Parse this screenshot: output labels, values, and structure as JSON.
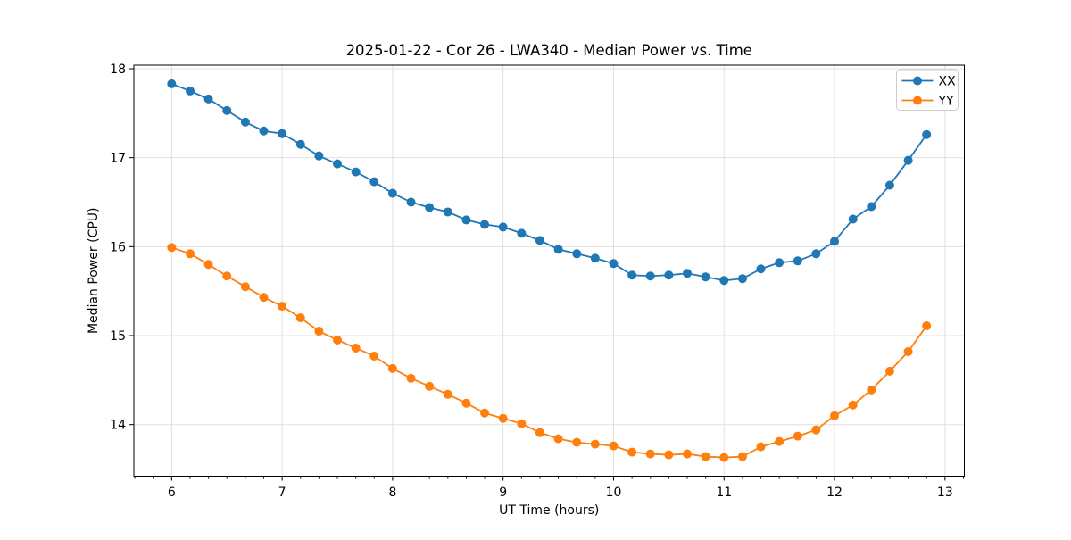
{
  "chart_data": {
    "type": "line",
    "title": "2025-01-22 - Cor 26 - LWA340 - Median Power vs. Time",
    "xlabel": "UT Time (hours)",
    "ylabel": "Median Power (CPU)",
    "xlim": [
      5.658,
      13.175
    ],
    "ylim": [
      13.42,
      18.04
    ],
    "xticks": [
      6,
      7,
      8,
      9,
      10,
      11,
      12,
      13
    ],
    "yticks": [
      14,
      15,
      16,
      17,
      18
    ],
    "x_minor_step": 0.16667,
    "grid": true,
    "grid_color": "#e0e0e0",
    "frame": "full-box",
    "legend_position": "upper right",
    "background_color": "#ffffff",
    "x": [
      6.0,
      6.167,
      6.333,
      6.5,
      6.667,
      6.833,
      7.0,
      7.167,
      7.333,
      7.5,
      7.667,
      7.833,
      8.0,
      8.167,
      8.333,
      8.5,
      8.667,
      8.833,
      9.0,
      9.167,
      9.333,
      9.5,
      9.667,
      9.833,
      10.0,
      10.167,
      10.333,
      10.5,
      10.667,
      10.833,
      11.0,
      11.167,
      11.333,
      11.5,
      11.667,
      11.833,
      12.0,
      12.167,
      12.333,
      12.5,
      12.667,
      12.833
    ],
    "series": [
      {
        "name": "XX",
        "color": "#1f77b4",
        "marker": "circle",
        "values": [
          17.83,
          17.75,
          17.66,
          17.53,
          17.4,
          17.3,
          17.27,
          17.15,
          17.02,
          16.93,
          16.84,
          16.73,
          16.6,
          16.5,
          16.44,
          16.39,
          16.3,
          16.25,
          16.22,
          16.15,
          16.07,
          15.97,
          15.92,
          15.87,
          15.81,
          15.68,
          15.67,
          15.68,
          15.7,
          15.66,
          15.62,
          15.64,
          15.75,
          15.82,
          15.84,
          15.92,
          16.06,
          16.31,
          16.45,
          16.69,
          16.97,
          17.26
        ]
      },
      {
        "name": "YY",
        "color": "#ff7f0e",
        "marker": "circle",
        "values": [
          15.99,
          15.92,
          15.8,
          15.67,
          15.55,
          15.43,
          15.33,
          15.2,
          15.05,
          14.95,
          14.86,
          14.77,
          14.63,
          14.52,
          14.43,
          14.34,
          14.24,
          14.13,
          14.07,
          14.01,
          13.91,
          13.84,
          13.8,
          13.78,
          13.76,
          13.69,
          13.67,
          13.66,
          13.67,
          13.64,
          13.63,
          13.64,
          13.75,
          13.81,
          13.87,
          13.94,
          14.1,
          14.22,
          14.39,
          14.6,
          14.82,
          15.11
        ]
      }
    ]
  }
}
